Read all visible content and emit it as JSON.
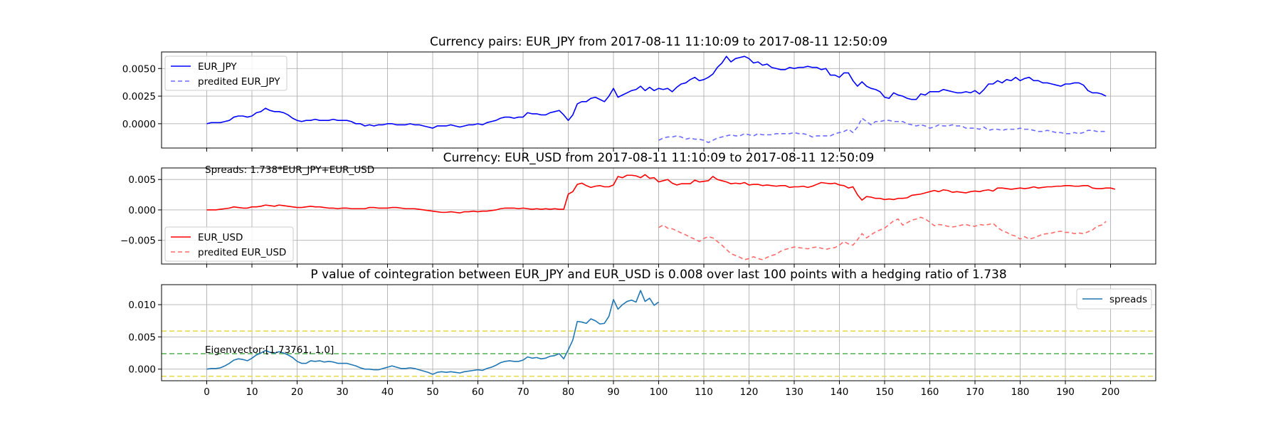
{
  "chart_data": [
    {
      "type": "line",
      "title": "Currency pairs: EUR_JPY from 2017-08-11 11:10:09 to 2017-08-11 12:50:09",
      "xlim": [
        -10,
        210
      ],
      "ylim": [
        -0.0022,
        0.0065
      ],
      "yticks": [
        "0.0000",
        "0.0025",
        "0.0050"
      ],
      "ytick_values": [
        0,
        0.0025,
        0.005
      ],
      "grid": true,
      "legend": "top-left",
      "series": [
        {
          "name": "EUR_JPY",
          "color": "#0000ff",
          "style": "solid",
          "x_start": 0,
          "values": [
            0.0,
            0.0001,
            0.0001,
            0.0001,
            0.0002,
            0.0003,
            0.0006,
            0.0007,
            0.0007,
            0.0006,
            0.0007,
            0.001,
            0.0011,
            0.0014,
            0.0012,
            0.0011,
            0.0011,
            0.001,
            0.0008,
            0.0005,
            0.0003,
            0.0002,
            0.0003,
            0.0003,
            0.0004,
            0.0003,
            0.0003,
            0.0003,
            0.0004,
            0.0003,
            0.0003,
            0.0003,
            0.0002,
            0.0,
            0.0,
            -0.0002,
            -0.0001,
            -0.0002,
            -0.0001,
            -0.0001,
            0.0,
            0.0,
            -0.0001,
            -0.0001,
            -0.0001,
            0.0,
            -0.0001,
            -0.0001,
            -0.0002,
            -0.0003,
            -0.0004,
            -0.0002,
            -0.0002,
            -0.0002,
            -0.0001,
            -0.0002,
            -0.0003,
            -0.0002,
            -0.0001,
            -0.0001,
            0.0,
            -0.0001,
            0.0001,
            0.0002,
            0.0003,
            0.0005,
            0.0006,
            0.0006,
            0.0005,
            0.0006,
            0.0006,
            0.001,
            0.0009,
            0.0009,
            0.0008,
            0.0008,
            0.001,
            0.0011,
            0.0012,
            0.0008,
            0.0003,
            0.0008,
            0.0018,
            0.002,
            0.002,
            0.0023,
            0.0024,
            0.0022,
            0.002,
            0.0025,
            0.0032,
            0.0024,
            0.0026,
            0.0028,
            0.003,
            0.0031,
            0.0034,
            0.003,
            0.0033,
            0.003,
            0.0032,
            0.0031,
            0.0032,
            0.0029,
            0.0033,
            0.0036,
            0.0037,
            0.004,
            0.0042,
            0.0039,
            0.004,
            0.0042,
            0.0045,
            0.0051,
            0.0055,
            0.0061,
            0.0056,
            0.0059,
            0.006,
            0.0061,
            0.0059,
            0.0055,
            0.0056,
            0.0053,
            0.0054,
            0.0051,
            0.005,
            0.0049,
            0.0049,
            0.0051,
            0.005,
            0.0051,
            0.0051,
            0.0052,
            0.0051,
            0.0051,
            0.0049,
            0.005,
            0.0044,
            0.0044,
            0.0042,
            0.0046,
            0.0046,
            0.0039,
            0.0034,
            0.0038,
            0.0034,
            0.0032,
            0.0031,
            0.0029,
            0.0024,
            0.0023,
            0.0028,
            0.0026,
            0.0025,
            0.0023,
            0.0022,
            0.0022,
            0.0027,
            0.0026,
            0.0029,
            0.0029,
            0.0029,
            0.0031,
            0.003,
            0.0029,
            0.0028,
            0.0028,
            0.0029,
            0.0028,
            0.003,
            0.0027,
            0.0031,
            0.0036,
            0.0036,
            0.0039,
            0.0037,
            0.004,
            0.0039,
            0.0042,
            0.0039,
            0.0041,
            0.0042,
            0.0039,
            0.0039,
            0.0037,
            0.0037,
            0.0036,
            0.0035,
            0.0034,
            0.0036,
            0.0036,
            0.0037,
            0.0037,
            0.0035,
            0.003,
            0.0028,
            0.0028,
            0.0027,
            0.0025
          ]
        },
        {
          "name": "predited EUR_JPY",
          "color": "#6b6bff",
          "style": "dashed",
          "x_start": 100,
          "values": [
            -0.0015,
            -0.0013,
            -0.0012,
            -0.0012,
            -0.0011,
            -0.0012,
            -0.0014,
            -0.0013,
            -0.0014,
            -0.0014,
            -0.0015,
            -0.0017,
            -0.0015,
            -0.0013,
            -0.0012,
            -0.0011,
            -0.001,
            -0.0011,
            -0.0011,
            -0.0009,
            -0.001,
            -0.0011,
            -0.0009,
            -0.001,
            -0.001,
            -0.001,
            -0.0009,
            -0.0009,
            -0.0009,
            -0.0009,
            -0.0008,
            -0.0009,
            -0.0009,
            -0.001,
            -0.0012,
            -0.0011,
            -0.0011,
            -0.0011,
            -0.0011,
            -0.0009,
            -0.0008,
            -0.0007,
            -0.0005,
            -0.0008,
            -0.0003,
            0.0005,
            0.0002,
            -0.0001,
            0.0002,
            0.0002,
            0.0003,
            0.0003,
            0.0002,
            0.0002,
            0.0002,
            0.0,
            -0.0001,
            -0.0002,
            -0.0001,
            -0.0002,
            -0.0004,
            -0.0003,
            -0.0001,
            -0.0002,
            -0.0002,
            -0.0001,
            -0.0002,
            -0.0002,
            -0.0004,
            -0.0004,
            -0.0004,
            -0.0005,
            -0.0003,
            -0.0006,
            -0.0005,
            -0.0005,
            -0.0006,
            -0.0005,
            -0.0005,
            -0.0005,
            -0.0004,
            -0.0005,
            -0.0005,
            -0.0006,
            -0.0007,
            -0.0007,
            -0.0006,
            -0.0007,
            -0.0008,
            -0.0008,
            -0.0009,
            -0.0009,
            -0.0008,
            -0.0009,
            -0.0008,
            -0.0006,
            -0.0006,
            -0.0007,
            -0.0007,
            -0.0007
          ]
        }
      ]
    },
    {
      "type": "line",
      "title": "Currency: EUR_USD from 2017-08-11 11:10:09 to 2017-08-11 12:50:09",
      "annotation": "Spreads: 1.738*EUR_JPY+EUR_USD",
      "xlim": [
        -10,
        210
      ],
      "ylim": [
        -0.0089,
        0.0069
      ],
      "yticks": [
        "−0.005",
        "0.000",
        "0.005"
      ],
      "ytick_values": [
        -0.005,
        0,
        0.005
      ],
      "grid": true,
      "legend": "bottom-left",
      "series": [
        {
          "name": "EUR_USD",
          "color": "#ff0000",
          "style": "solid",
          "x_start": 0,
          "values": [
            0.0,
            0.0,
            0.0,
            0.0001,
            0.0002,
            0.0003,
            0.0005,
            0.0004,
            0.0003,
            0.0003,
            0.0005,
            0.0005,
            0.0006,
            0.0008,
            0.0007,
            0.0006,
            0.0008,
            0.0007,
            0.0006,
            0.0005,
            0.0004,
            0.0004,
            0.0005,
            0.0006,
            0.0005,
            0.0005,
            0.0004,
            0.0003,
            0.0003,
            0.0002,
            0.0003,
            0.0003,
            0.0002,
            0.0002,
            0.0002,
            0.0002,
            0.0004,
            0.0004,
            0.0003,
            0.0003,
            0.0003,
            0.0004,
            0.0004,
            0.0003,
            0.0002,
            0.0002,
            0.0002,
            0.0001,
            0.0,
            -0.0001,
            -0.0002,
            -0.0003,
            -0.0004,
            -0.0004,
            -0.0003,
            -0.0004,
            -0.0005,
            -0.0003,
            -0.0003,
            -0.0002,
            -0.0003,
            -0.0002,
            -0.0002,
            -0.0001,
            0.0,
            0.0002,
            0.0003,
            0.0003,
            0.0003,
            0.0002,
            0.0003,
            0.0002,
            0.0001,
            0.0002,
            0.0001,
            0.0002,
            0.0001,
            0.0002,
            0.0001,
            0.0001,
            0.0026,
            0.003,
            0.0042,
            0.0044,
            0.004,
            0.0037,
            0.0039,
            0.004,
            0.0038,
            0.0038,
            0.0041,
            0.0055,
            0.0053,
            0.0057,
            0.0057,
            0.0056,
            0.0053,
            0.0058,
            0.0052,
            0.0053,
            0.0046,
            0.0048,
            0.005,
            0.0044,
            0.0041,
            0.0043,
            0.0043,
            0.0043,
            0.0049,
            0.0046,
            0.0047,
            0.0048,
            0.0055,
            0.005,
            0.0048,
            0.0046,
            0.0043,
            0.0044,
            0.0043,
            0.0045,
            0.0041,
            0.0042,
            0.0042,
            0.004,
            0.0041,
            0.004,
            0.0039,
            0.004,
            0.004,
            0.0037,
            0.0038,
            0.0038,
            0.0039,
            0.0037,
            0.0039,
            0.0042,
            0.0045,
            0.0044,
            0.0043,
            0.0044,
            0.0041,
            0.004,
            0.0036,
            0.0038,
            0.0025,
            0.0016,
            0.0022,
            0.0021,
            0.0019,
            0.0019,
            0.0017,
            0.0018,
            0.0017,
            0.0019,
            0.0019,
            0.002,
            0.0024,
            0.0025,
            0.0026,
            0.0028,
            0.003,
            0.0032,
            0.003,
            0.0033,
            0.0032,
            0.0029,
            0.003,
            0.0029,
            0.0028,
            0.003,
            0.0031,
            0.003,
            0.0032,
            0.0033,
            0.0031,
            0.0036,
            0.0036,
            0.0035,
            0.0034,
            0.0035,
            0.0036,
            0.0035,
            0.0036,
            0.0038,
            0.0036,
            0.0037,
            0.0038,
            0.0038,
            0.0039,
            0.0039,
            0.004,
            0.004,
            0.0039,
            0.0039,
            0.004,
            0.004,
            0.0036,
            0.0035,
            0.0035,
            0.0036,
            0.0036,
            0.0034
          ]
        },
        {
          "name": "predited EUR_USD",
          "color": "#ff6b6b",
          "style": "dashed",
          "x_start": 100,
          "values": [
            -0.0029,
            -0.0025,
            -0.003,
            -0.0031,
            -0.0034,
            -0.0038,
            -0.0041,
            -0.0045,
            -0.0048,
            -0.0052,
            -0.0047,
            -0.0044,
            -0.0046,
            -0.0052,
            -0.0058,
            -0.0065,
            -0.0072,
            -0.0075,
            -0.0078,
            -0.0082,
            -0.008,
            -0.0077,
            -0.008,
            -0.0082,
            -0.0078,
            -0.0075,
            -0.0073,
            -0.0068,
            -0.0065,
            -0.0063,
            -0.0061,
            -0.0062,
            -0.0063,
            -0.0064,
            -0.0062,
            -0.0061,
            -0.0063,
            -0.0065,
            -0.0063,
            -0.0062,
            -0.0058,
            -0.0052,
            -0.0056,
            -0.0058,
            -0.0049,
            -0.0039,
            -0.0046,
            -0.0041,
            -0.0036,
            -0.0033,
            -0.003,
            -0.0024,
            -0.0018,
            -0.0015,
            -0.0025,
            -0.0021,
            -0.0017,
            -0.0015,
            -0.0012,
            -0.0015,
            -0.002,
            -0.0026,
            -0.0024,
            -0.0025,
            -0.0027,
            -0.0028,
            -0.0027,
            -0.0025,
            -0.0024,
            -0.0026,
            -0.0027,
            -0.0024,
            -0.0025,
            -0.0024,
            -0.0022,
            -0.0029,
            -0.0034,
            -0.0037,
            -0.0041,
            -0.0043,
            -0.0048,
            -0.0044,
            -0.0048,
            -0.0046,
            -0.0043,
            -0.004,
            -0.0039,
            -0.0038,
            -0.0036,
            -0.0035,
            -0.0037,
            -0.0037,
            -0.0039,
            -0.0038,
            -0.0039,
            -0.0036,
            -0.0033,
            -0.0027,
            -0.0025,
            -0.0019
          ]
        }
      ]
    },
    {
      "type": "line",
      "title": "P value of cointegration between EUR_JPY and EUR_USD is 0.008 over last 100 points with a hedging ratio of 1.738",
      "annotation": "Eigenvector:[1.73761, 1.0]",
      "xlim": [
        -10,
        210
      ],
      "ylim": [
        -0.0018,
        0.0131
      ],
      "xticks": [
        "0",
        "10",
        "20",
        "30",
        "40",
        "50",
        "60",
        "70",
        "80",
        "90",
        "100",
        "110",
        "120",
        "130",
        "140",
        "150",
        "160",
        "170",
        "180",
        "190",
        "200"
      ],
      "xtick_values": [
        0,
        10,
        20,
        30,
        40,
        50,
        60,
        70,
        80,
        90,
        100,
        110,
        120,
        130,
        140,
        150,
        160,
        170,
        180,
        190,
        200
      ],
      "yticks": [
        "0.000",
        "0.005",
        "0.010"
      ],
      "ytick_values": [
        0,
        0.005,
        0.01
      ],
      "grid": true,
      "legend": "top-right",
      "hlines": [
        {
          "y": 0.0059,
          "color": "#e6dc50"
        },
        {
          "y": 0.0024,
          "color": "#5fb85f"
        },
        {
          "y": -0.0011,
          "color": "#e6dc50"
        }
      ],
      "series": [
        {
          "name": "spreads",
          "color": "#1f77b4",
          "style": "solid",
          "x_start": 0,
          "values": [
            0.0,
            0.0001,
            0.0001,
            0.0002,
            0.0005,
            0.0009,
            0.0014,
            0.0016,
            0.0015,
            0.0013,
            0.0017,
            0.0022,
            0.0025,
            0.0029,
            0.0026,
            0.0025,
            0.0027,
            0.0025,
            0.0022,
            0.0018,
            0.0012,
            0.0009,
            0.0009,
            0.0013,
            0.0012,
            0.0013,
            0.0011,
            0.0012,
            0.0011,
            0.0009,
            0.0009,
            0.0009,
            0.0007,
            0.0005,
            0.0002,
            0.0,
            0.0,
            -0.0001,
            -0.0001,
            0.0001,
            0.0003,
            0.0005,
            0.0003,
            0.0001,
            0.0001,
            0.0002,
            0.0001,
            -0.0001,
            -0.0003,
            -0.0005,
            -0.0008,
            -0.0005,
            -0.0004,
            -0.0005,
            -0.0004,
            -0.0005,
            -0.0006,
            -0.0004,
            -0.0003,
            -0.0002,
            -0.0001,
            -0.0002,
            0.0001,
            0.0003,
            0.0006,
            0.001,
            0.0012,
            0.0013,
            0.0012,
            0.0012,
            0.0014,
            0.0019,
            0.0017,
            0.0018,
            0.0016,
            0.0017,
            0.002,
            0.0021,
            0.0024,
            0.0016,
            0.003,
            0.0045,
            0.0074,
            0.0073,
            0.0071,
            0.0078,
            0.0075,
            0.007,
            0.0071,
            0.0082,
            0.0108,
            0.0093,
            0.01,
            0.0105,
            0.0107,
            0.0104,
            0.0122,
            0.0105,
            0.011,
            0.0099,
            0.0104
          ]
        }
      ]
    }
  ]
}
